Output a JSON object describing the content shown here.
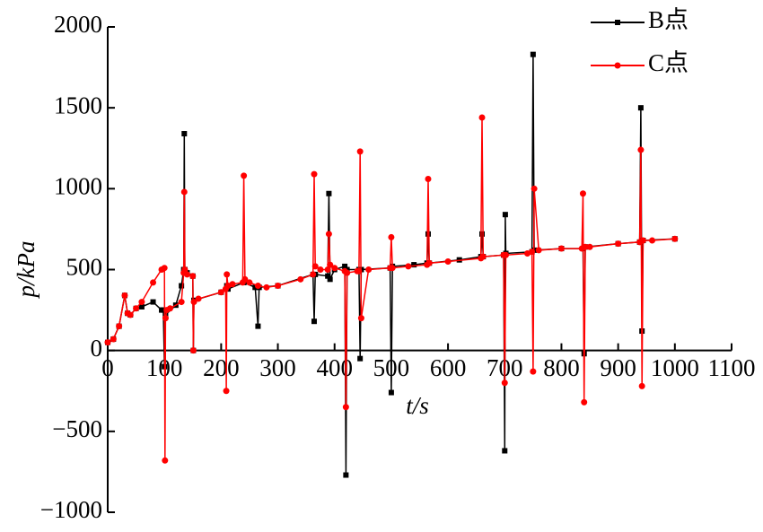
{
  "chart_data": {
    "type": "line",
    "xlabel": "t/s",
    "ylabel": "p/kPa",
    "xlim": [
      0,
      1100
    ],
    "ylim": [
      -1000,
      2000
    ],
    "xticks": [
      0,
      100,
      200,
      300,
      400,
      500,
      600,
      700,
      800,
      900,
      1000,
      1100
    ],
    "yticks": [
      {
        "value": -1000,
        "label": "−1000"
      },
      {
        "value": -500,
        "label": "−500"
      },
      0,
      500,
      1000,
      1500,
      2000
    ],
    "legend": "upper right",
    "series": [
      {
        "name": "B点",
        "color": "#000000",
        "marker": "square",
        "x": [
          0,
          10,
          20,
          30,
          35,
          40,
          50,
          60,
          80,
          95,
          98,
          100,
          102,
          120,
          130,
          134,
          135,
          136,
          140,
          150,
          151,
          152,
          200,
          210,
          212,
          240,
          260,
          265,
          267,
          300,
          362,
          364,
          366,
          388,
          390,
          392,
          400,
          418,
          420,
          422,
          443,
          445,
          447,
          498,
          500,
          502,
          540,
          563,
          565,
          567,
          620,
          658,
          660,
          662,
          698,
          700,
          701,
          702,
          748,
          750,
          752,
          800,
          838,
          840,
          842,
          900,
          938,
          940,
          942,
          944,
          1000
        ],
        "values": [
          50,
          70,
          150,
          340,
          230,
          220,
          260,
          270,
          300,
          250,
          250,
          -100,
          220,
          280,
          400,
          500,
          1340,
          500,
          480,
          460,
          0,
          310,
          360,
          400,
          380,
          420,
          390,
          150,
          390,
          400,
          470,
          180,
          470,
          460,
          970,
          440,
          500,
          520,
          -770,
          500,
          500,
          -50,
          500,
          510,
          -260,
          520,
          530,
          540,
          720,
          540,
          560,
          580,
          720,
          580,
          590,
          -620,
          840,
          600,
          610,
          1830,
          620,
          630,
          630,
          -20,
          640,
          660,
          670,
          1500,
          120,
          680,
          690
        ]
      },
      {
        "name": "C点",
        "color": "#ff0000",
        "marker": "circle",
        "x": [
          0,
          10,
          20,
          30,
          35,
          40,
          50,
          60,
          80,
          95,
          100,
          101,
          102,
          104,
          110,
          130,
          134,
          135,
          136,
          140,
          150,
          151,
          152,
          160,
          200,
          208,
          209,
          210,
          212,
          220,
          238,
          240,
          242,
          250,
          265,
          280,
          300,
          340,
          362,
          364,
          366,
          375,
          388,
          390,
          392,
          400,
          418,
          420,
          422,
          440,
          443,
          445,
          447,
          460,
          498,
          500,
          502,
          530,
          563,
          565,
          567,
          600,
          658,
          660,
          662,
          698,
          700,
          702,
          740,
          748,
          750,
          752,
          760,
          800,
          836,
          838,
          840,
          842,
          850,
          900,
          938,
          940,
          942,
          944,
          960,
          1000
        ],
        "values": [
          50,
          70,
          150,
          340,
          230,
          220,
          260,
          300,
          420,
          500,
          510,
          -680,
          200,
          250,
          260,
          300,
          480,
          980,
          500,
          470,
          460,
          0,
          300,
          320,
          360,
          380,
          -250,
          470,
          400,
          410,
          420,
          1080,
          440,
          420,
          400,
          390,
          400,
          440,
          470,
          1090,
          520,
          500,
          500,
          720,
          530,
          510,
          490,
          -350,
          480,
          490,
          490,
          1230,
          200,
          500,
          510,
          700,
          510,
          520,
          530,
          1060,
          540,
          550,
          570,
          1440,
          580,
          590,
          -200,
          590,
          600,
          610,
          -130,
          1000,
          620,
          630,
          630,
          970,
          -320,
          640,
          640,
          660,
          670,
          1240,
          -220,
          680,
          680,
          690
        ]
      }
    ]
  }
}
